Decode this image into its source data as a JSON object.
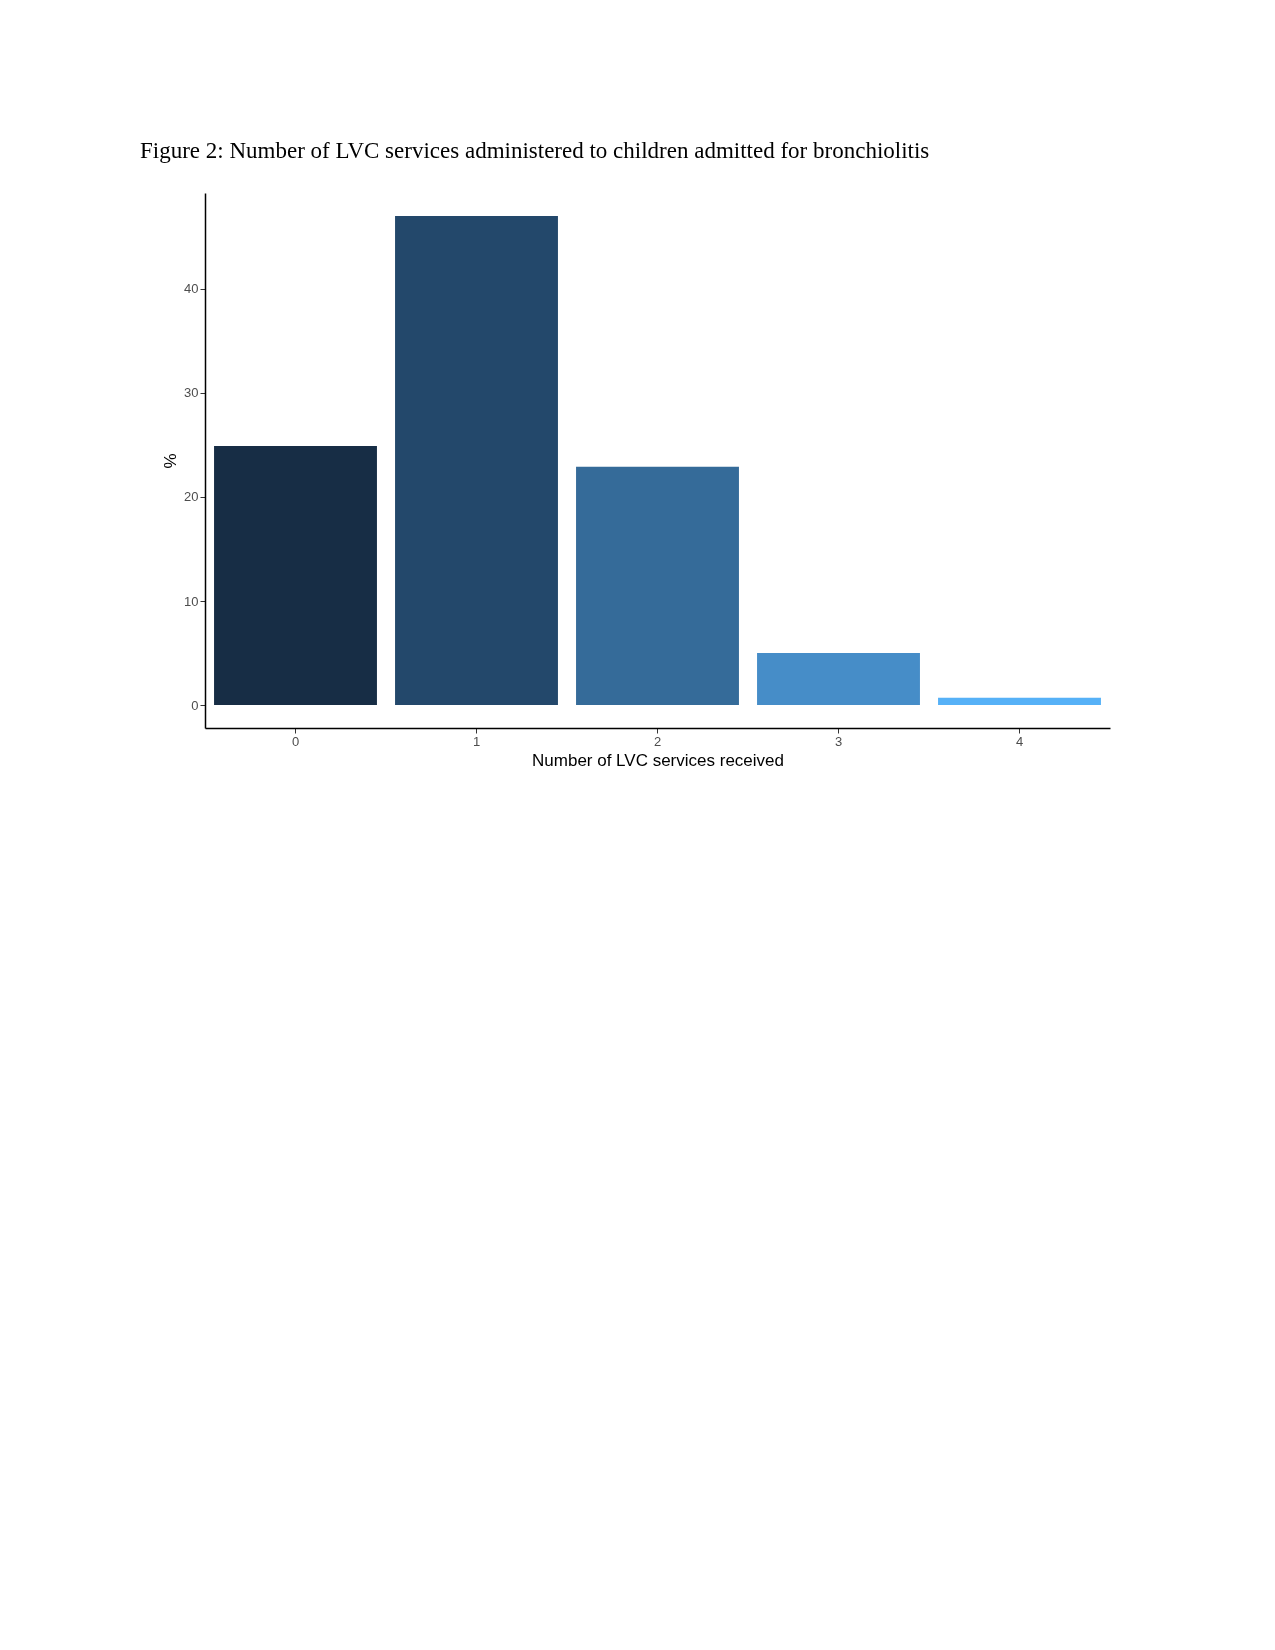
{
  "chart_data": {
    "type": "bar",
    "title": "Figure 2: Number of LVC services administered to children admitted for bronchiolitis",
    "xlabel": "Number of LVC services received",
    "ylabel": "%",
    "categories": [
      "0",
      "1",
      "2",
      "3",
      "4"
    ],
    "values": [
      24.9,
      47.0,
      22.9,
      5.0,
      0.7
    ],
    "colors": [
      "#172d45",
      "#23486b",
      "#356b99",
      "#468dc8",
      "#56b1f7"
    ],
    "ylim": [
      -2.2,
      49.2
    ],
    "yticks": [
      0,
      10,
      20,
      30,
      40
    ],
    "grid": false
  }
}
